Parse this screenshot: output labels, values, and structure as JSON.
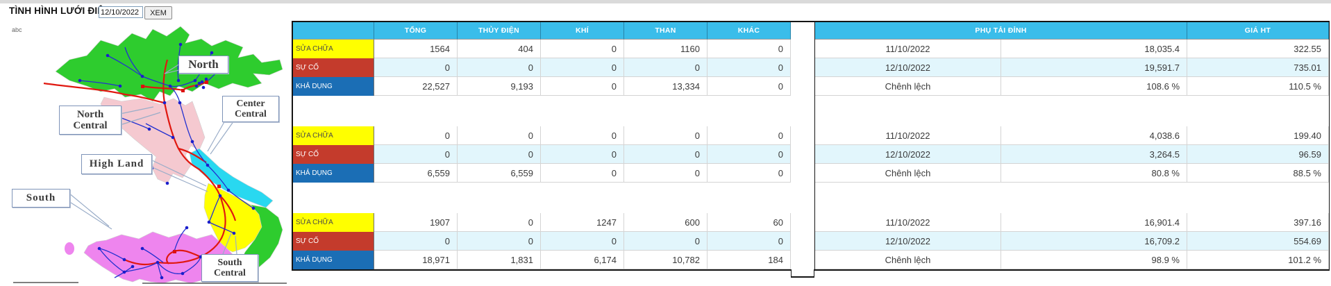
{
  "page": {
    "title": "TÌNH HÌNH LƯỚI ĐIỆN",
    "date_input": "12/10/2022",
    "view_button": "XEM",
    "map_note": "abc"
  },
  "map": {
    "labels": [
      {
        "line1": "North",
        "line2": ""
      },
      {
        "line1": "Center",
        "line2": "Central"
      },
      {
        "line1": "North",
        "line2": "Central"
      },
      {
        "line1": "High Land",
        "line2": ""
      },
      {
        "line1": "South",
        "line2": ""
      },
      {
        "line1": "South",
        "line2": "Central"
      }
    ],
    "region_colors": {
      "north": "#2ecc2e",
      "north_central": "#f5c9d0",
      "center_central": "#29d8f0",
      "high_land": "#ffff00",
      "south_central": "#2ecc2e",
      "south": "#ee85ee"
    },
    "line_colors": {
      "line_500kv": "#e01810",
      "line_220kv": "#2230d0"
    },
    "node_colors": {
      "substation_blue": "#1a1ecc",
      "substation_red": "#dd1111"
    }
  },
  "table": {
    "column_headers": [
      "",
      "TỔNG",
      "THỦY ĐIỆN",
      "KHÍ",
      "THAN",
      "KHÁC"
    ],
    "peak_header": "PHỤ TẢI ĐỈNH",
    "price_header": "GIÁ HT",
    "colors": {
      "header_bg": "#3abdea",
      "stripe_bg": "#e2f6fc",
      "repair_bg": "#ffff00",
      "incident_bg": "#c43b2c",
      "available_bg": "#1b6eb5"
    },
    "groups": [
      {
        "rows": [
          {
            "label": "SỬA CHỮA",
            "values": [
              "1564",
              "404",
              "0",
              "1160",
              "0"
            ],
            "peak_date": "11/10/2022",
            "peak_value": "18,035.4",
            "price": "322.55"
          },
          {
            "label": "SỰ CỐ",
            "values": [
              "0",
              "0",
              "0",
              "0",
              "0"
            ],
            "peak_date": "12/10/2022",
            "peak_value": "19,591.7",
            "price": "735.01"
          },
          {
            "label": "KHẢ DỤNG",
            "values": [
              "22,527",
              "9,193",
              "0",
              "13,334",
              "0"
            ],
            "peak_date": "Chênh lệch",
            "peak_value": "108.6 %",
            "price": "110.5 %"
          }
        ]
      },
      {
        "rows": [
          {
            "label": "SỬA CHỮA",
            "values": [
              "0",
              "0",
              "0",
              "0",
              "0"
            ],
            "peak_date": "11/10/2022",
            "peak_value": "4,038.6",
            "price": "199.40"
          },
          {
            "label": "SỰ CỐ",
            "values": [
              "0",
              "0",
              "0",
              "0",
              "0"
            ],
            "peak_date": "12/10/2022",
            "peak_value": "3,264.5",
            "price": "96.59"
          },
          {
            "label": "KHẢ DỤNG",
            "values": [
              "6,559",
              "6,559",
              "0",
              "0",
              "0"
            ],
            "peak_date": "Chênh lệch",
            "peak_value": "80.8 %",
            "price": "88.5 %"
          }
        ]
      },
      {
        "rows": [
          {
            "label": "SỬA CHỮA",
            "values": [
              "1907",
              "0",
              "1247",
              "600",
              "60"
            ],
            "peak_date": "11/10/2022",
            "peak_value": "16,901.4",
            "price": "397.16"
          },
          {
            "label": "SỰ CỐ",
            "values": [
              "0",
              "0",
              "0",
              "0",
              "0"
            ],
            "peak_date": "12/10/2022",
            "peak_value": "16,709.2",
            "price": "554.69"
          },
          {
            "label": "KHẢ DỤNG",
            "values": [
              "18,971",
              "1,831",
              "6,174",
              "10,782",
              "184"
            ],
            "peak_date": "Chênh lệch",
            "peak_value": "98.9 %",
            "price": "101.2 %"
          }
        ]
      }
    ]
  }
}
